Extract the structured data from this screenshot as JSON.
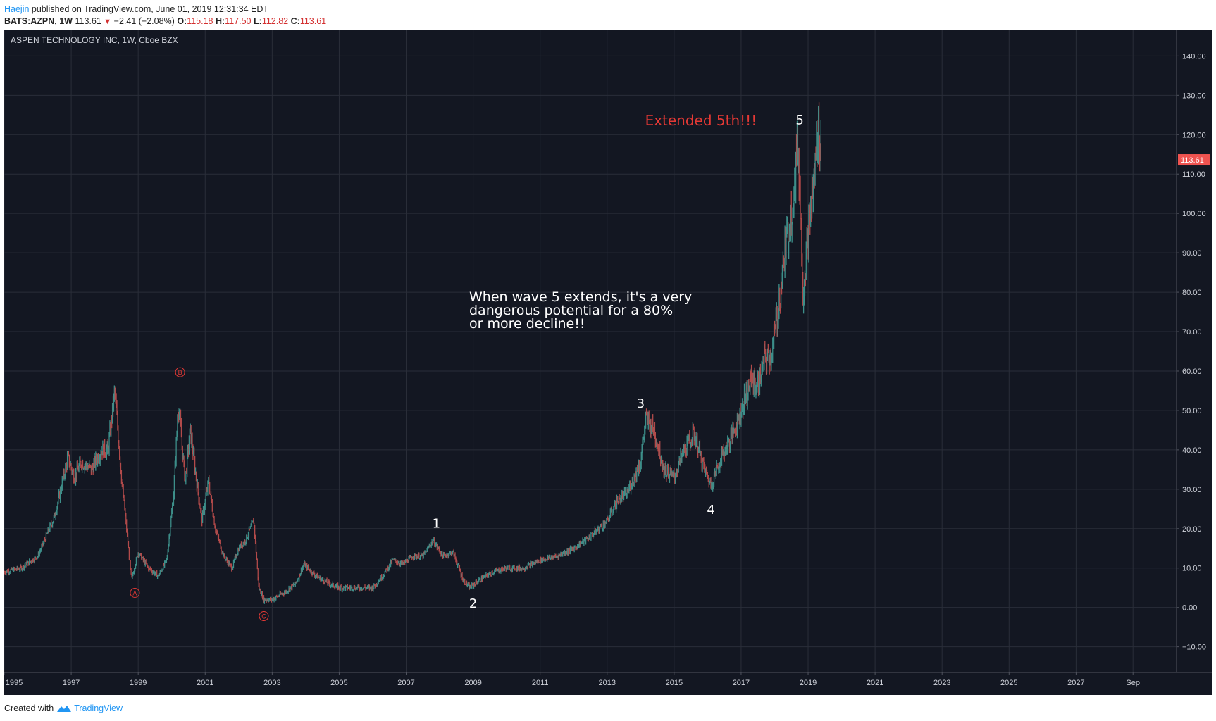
{
  "header": {
    "author": "Haejin",
    "published_text": " published on TradingView.com, June 01, 2019 12:31:34 EDT",
    "symbol_interval": "BATS:AZPN, 1W",
    "last": "113.61",
    "change": "−2.41 (−2.08%)",
    "o_label": "O:",
    "o_value": "115.18",
    "h_label": "H:",
    "h_value": "117.50",
    "l_label": "L:",
    "l_value": "112.82",
    "c_label": "C:",
    "c_value": "113.61"
  },
  "footer": {
    "created_with": "Created with",
    "brand": "TradingView"
  },
  "colors": {
    "background": "#131722",
    "grid": "#2a2e39",
    "candle_up": "#3d8f8a",
    "candle_down": "#b24a4a",
    "axis_text": "#d1d4dc",
    "red_annotation": "#e53935",
    "white_text": "#ffffff",
    "price_tag": "#ef5350"
  },
  "chart_data": {
    "type": "line",
    "title": "ASPEN TECHNOLOGY INC, 1W, Cboe BZX",
    "xlabel": "",
    "ylabel": "",
    "xlim": [
      1995.0,
      2030.0
    ],
    "ylim": [
      -16.5,
      146.5
    ],
    "y_ticks": [
      140,
      130,
      120,
      110,
      100,
      90,
      80,
      70,
      60,
      50,
      40,
      30,
      20,
      10,
      0,
      -10
    ],
    "y_tick_labels": [
      "140.00",
      "130.00",
      "120.00",
      "110.00",
      "100.00",
      "90.00",
      "80.00",
      "70.00",
      "60.00",
      "50.00",
      "40.00",
      "30.00",
      "20.00",
      "10.00",
      "0.00",
      "−10.00"
    ],
    "x_ticks": [
      1995,
      1997,
      1999,
      2001,
      2003,
      2005,
      2007,
      2009,
      2011,
      2013,
      2015,
      2017,
      2019,
      2021,
      2023,
      2025,
      2027,
      2028.7
    ],
    "x_tick_labels": [
      "1995",
      "1997",
      "1999",
      "2001",
      "2003",
      "2005",
      "2007",
      "2009",
      "2011",
      "2013",
      "2015",
      "2017",
      "2019",
      "2021",
      "2023",
      "2025",
      "2027",
      "Sep"
    ],
    "grid": true,
    "series": [
      {
        "x": [
          1995.0,
          1995.5,
          1996.0,
          1996.5,
          1996.9,
          1997.1,
          1997.3,
          1997.6,
          1997.9,
          1998.1,
          1998.3,
          1998.5,
          1998.65,
          1998.8,
          1999.0,
          1999.3,
          1999.6,
          1999.85,
          2000.05,
          2000.2,
          2000.4,
          2000.55,
          2000.7,
          2000.9,
          2001.1,
          2001.3,
          2001.55,
          2001.8,
          2002.0,
          2002.2,
          2002.45,
          2002.6,
          2002.75,
          2003.0,
          2003.4,
          2003.7,
          2003.95,
          2004.3,
          2004.7,
          2005.0,
          2005.5,
          2006.0,
          2006.3,
          2006.6,
          2006.9,
          2007.2,
          2007.5,
          2007.8,
          2008.1,
          2008.4,
          2008.7,
          2008.9,
          2009.2,
          2009.6,
          2010.0,
          2010.5,
          2011.0,
          2011.5,
          2012.0,
          2012.5,
          2013.0,
          2013.3,
          2013.6,
          2014.0,
          2014.15,
          2014.4,
          2014.7,
          2015.0,
          2015.3,
          2015.6,
          2015.9,
          2016.1,
          2016.4,
          2016.7,
          2017.0,
          2017.3,
          2017.5,
          2017.7,
          2017.9,
          2018.1,
          2018.3,
          2018.5,
          2018.7,
          2018.85,
          2019.0,
          2019.15,
          2019.3,
          2019.4
        ],
        "y": [
          9,
          10,
          13,
          23,
          38,
          33,
          37,
          35,
          40,
          40,
          55,
          33,
          20,
          7,
          14,
          10,
          8,
          12,
          28,
          52,
          32,
          45,
          35,
          22,
          32,
          20,
          13,
          10,
          15,
          17,
          22,
          5,
          2,
          2,
          4,
          6,
          11,
          8,
          6,
          5,
          5,
          5,
          8,
          12,
          11,
          13,
          13,
          17,
          13,
          14,
          7,
          5,
          7,
          9,
          10,
          10,
          12,
          13,
          15,
          18,
          22,
          27,
          29,
          37,
          48,
          45,
          35,
          33,
          40,
          44,
          35,
          31,
          38,
          43,
          50,
          58,
          56,
          63,
          64,
          75,
          90,
          100,
          118,
          80,
          95,
          106,
          122,
          116
        ]
      }
    ],
    "annotations": [
      {
        "text": "A",
        "x": 1998.9,
        "y": 3.7,
        "style": "circle"
      },
      {
        "text": "B",
        "x": 2000.25,
        "y": 59.7,
        "style": "circle"
      },
      {
        "text": "C",
        "x": 2002.75,
        "y": -2.2,
        "style": "circle"
      },
      {
        "text": "1",
        "x": 2007.9,
        "y": 21.3,
        "style": "label"
      },
      {
        "text": "2",
        "x": 2009.0,
        "y": 1.0,
        "style": "label"
      },
      {
        "text": "3",
        "x": 2014.0,
        "y": 51.8,
        "style": "label"
      },
      {
        "text": "4",
        "x": 2016.1,
        "y": 24.8,
        "style": "label"
      },
      {
        "text": "5",
        "x": 2018.75,
        "y": 123.7,
        "style": "label"
      },
      {
        "text": "Extended 5th!!!",
        "x": 2015.8,
        "y": 123.6,
        "style": "red"
      }
    ],
    "note_lines": [
      "When wave 5 extends, it's a very",
      "dangerous potential for a 80%",
      "or more decline!!"
    ],
    "last_price_tag": "113.61",
    "last_price": 113.61
  }
}
